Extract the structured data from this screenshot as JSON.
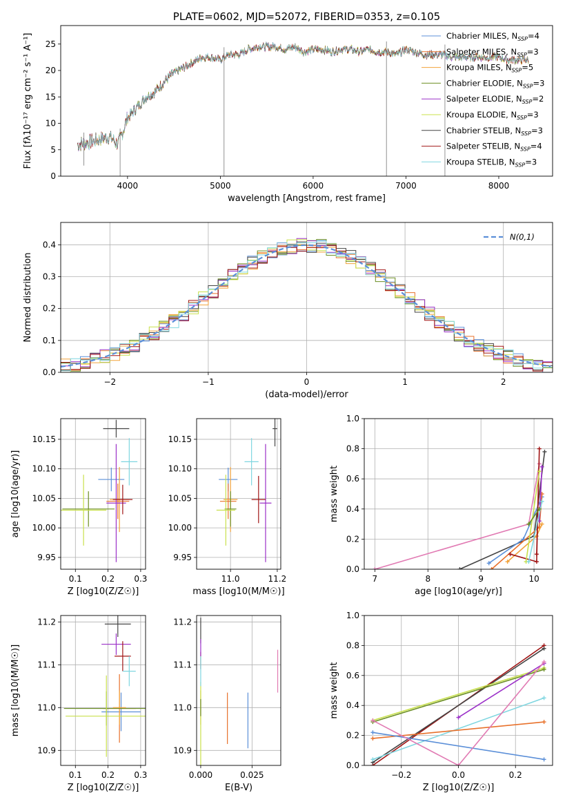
{
  "colors": {
    "chabrier_miles": "#5b8fd8",
    "salpeter_miles": "#e8702a",
    "kroupa_miles": "#f2a23a",
    "chabrier_elodie": "#6b8e23",
    "salpeter_elodie": "#9b30c8",
    "kroupa_elodie": "#c8e04a",
    "chabrier_stelib": "#444444",
    "salpeter_stelib": "#a01414",
    "kroupa_stelib": "#7fd6e0",
    "pink": "#e17ab3",
    "gaussian": "#5b8fd8",
    "grid": "#b0b0b0"
  },
  "chart_data": [
    {
      "id": "spectrum",
      "type": "line",
      "title": "PLATE=0602, MJD=52072, FIBERID=0353, z=0.105",
      "xlabel": "wavelength [Angstrom, rest frame]",
      "ylabel": "Flux [fλ10⁻¹⁷ erg cm⁻² s⁻¹ A⁻¹]",
      "xlim": [
        3280,
        8580
      ],
      "ylim": [
        0,
        28.5
      ],
      "xticks": [
        4000,
        5000,
        6000,
        7000,
        8000
      ],
      "yticks": [
        0,
        5,
        10,
        15,
        20,
        25
      ],
      "grid": false,
      "legend_position": "right",
      "legend": [
        {
          "label": "Chabrier MILES, N",
          "sub": "SSP",
          "tail": "=4",
          "color": "chabrier_miles"
        },
        {
          "label": "Salpeter MILES, N",
          "sub": "SSP",
          "tail": "=3",
          "color": "salpeter_miles"
        },
        {
          "label": "Kroupa MILES, N",
          "sub": "SSP",
          "tail": "=5",
          "color": "kroupa_miles"
        },
        {
          "label": "Chabrier ELODIE, N",
          "sub": "SSP",
          "tail": "=3",
          "color": "chabrier_elodie"
        },
        {
          "label": "Salpeter ELODIE, N",
          "sub": "SSP",
          "tail": "=2",
          "color": "salpeter_elodie"
        },
        {
          "label": "Kroupa ELODIE, N",
          "sub": "SSP",
          "tail": "=3",
          "color": "kroupa_elodie"
        },
        {
          "label": "Chabrier STELIB, N",
          "sub": "SSP",
          "tail": "=3",
          "color": "chabrier_stelib"
        },
        {
          "label": "Salpeter STELIB, N",
          "sub": "SSP",
          "tail": "=4",
          "color": "salpeter_stelib"
        },
        {
          "label": "Kroupa STELIB, N",
          "sub": "SSP",
          "tail": "=3",
          "color": "kroupa_stelib"
        }
      ],
      "continuum": [
        [
          3460,
          6
        ],
        [
          3600,
          6.5
        ],
        [
          3700,
          7
        ],
        [
          3800,
          7.5
        ],
        [
          3900,
          6
        ],
        [
          3960,
          9
        ],
        [
          4000,
          11
        ],
        [
          4100,
          13
        ],
        [
          4200,
          15
        ],
        [
          4300,
          16
        ],
        [
          4400,
          18
        ],
        [
          4500,
          19.5
        ],
        [
          4600,
          20.5
        ],
        [
          4700,
          21.5
        ],
        [
          4800,
          22.5
        ],
        [
          4900,
          22.5
        ],
        [
          5000,
          22
        ],
        [
          5100,
          23
        ],
        [
          5200,
          23
        ],
        [
          5300,
          24
        ],
        [
          5400,
          24.5
        ],
        [
          5500,
          24.5
        ],
        [
          5600,
          24.5
        ],
        [
          5700,
          24
        ],
        [
          5800,
          24.5
        ],
        [
          5900,
          23.5
        ],
        [
          6000,
          24
        ],
        [
          6100,
          24
        ],
        [
          6200,
          23.5
        ],
        [
          6300,
          24
        ],
        [
          6400,
          24
        ],
        [
          6500,
          23.5
        ],
        [
          6600,
          24
        ],
        [
          6700,
          23.5
        ],
        [
          6800,
          23.5
        ],
        [
          6900,
          23
        ],
        [
          7000,
          24
        ],
        [
          7100,
          23.5
        ],
        [
          7200,
          23
        ],
        [
          7300,
          23
        ],
        [
          7400,
          23
        ],
        [
          7500,
          22.5
        ],
        [
          7600,
          22.5
        ],
        [
          7700,
          22.5
        ],
        [
          7800,
          22.5
        ],
        [
          7900,
          22.5
        ],
        [
          8000,
          22.5
        ],
        [
          8100,
          22
        ],
        [
          8200,
          22
        ],
        [
          8320,
          22
        ]
      ],
      "spikes": [
        {
          "x": 5040,
          "y": 0
        },
        {
          "x": 6790,
          "y": 0
        },
        {
          "x": 7420,
          "y": 0
        },
        {
          "x": 3920,
          "y": 0
        },
        {
          "x": 3530,
          "y": 2
        }
      ]
    },
    {
      "id": "residuals",
      "type": "bar",
      "xlabel": "(data-model)/error",
      "ylabel": "Normed distribution",
      "xlim": [
        -2.5,
        2.5
      ],
      "ylim": [
        0,
        0.47
      ],
      "xticks": [
        -2,
        -1,
        0,
        1,
        2
      ],
      "yticks": [
        0.0,
        0.1,
        0.2,
        0.3,
        0.4
      ],
      "grid": true,
      "legend_position": "upper right",
      "gaussian_label": "N(0,1)"
    },
    {
      "id": "age_vs_Z",
      "type": "scatter",
      "xlabel": "Z [log10(Z/Z☉)]",
      "ylabel": "age  [log10(age/yr)]",
      "xlim": [
        0.055,
        0.315
      ],
      "ylim": [
        9.93,
        10.185
      ],
      "xticks": [
        0.1,
        0.2,
        0.3
      ],
      "yticks": [
        9.95,
        10.0,
        10.05,
        10.1,
        10.15
      ],
      "grid": true,
      "points": [
        {
          "x": 0.21,
          "y": 10.082,
          "xerr": 0.04,
          "yerr": 0.02,
          "color": "chabrier_miles"
        },
        {
          "x": 0.23,
          "y": 10.045,
          "xerr": 0.035,
          "yerr": 0.03,
          "color": "salpeter_miles"
        },
        {
          "x": 0.235,
          "y": 10.048,
          "xerr": 0.03,
          "yerr": 0.055,
          "color": "kroupa_miles"
        },
        {
          "x": 0.14,
          "y": 10.032,
          "xerr": 0.08,
          "yerr": 0.03,
          "color": "chabrier_elodie"
        },
        {
          "x": 0.225,
          "y": 10.042,
          "xerr": 0.03,
          "yerr": 0.1,
          "color": "salpeter_elodie"
        },
        {
          "x": 0.125,
          "y": 10.03,
          "xerr": 0.07,
          "yerr": 0.06,
          "color": "kroupa_elodie"
        },
        {
          "x": 0.225,
          "y": 10.168,
          "xerr": 0.04,
          "yerr": 0.015,
          "color": "chabrier_stelib"
        },
        {
          "x": 0.245,
          "y": 10.048,
          "xerr": 0.03,
          "yerr": 0.025,
          "color": "salpeter_stelib"
        },
        {
          "x": 0.265,
          "y": 10.112,
          "xerr": 0.025,
          "yerr": 0.04,
          "color": "kroupa_stelib"
        }
      ]
    },
    {
      "id": "age_vs_mass",
      "type": "scatter",
      "xlabel": "mass [log10(M/M☉)]",
      "ylabel": "",
      "xlim": [
        10.855,
        11.215
      ],
      "ylim": [
        9.93,
        10.185
      ],
      "xticks": [
        11.0,
        11.2
      ],
      "yticks": [
        9.95,
        10.0,
        10.05,
        10.1,
        10.15
      ],
      "grid": true,
      "points": [
        {
          "x": 10.99,
          "y": 10.082,
          "xerr": 0.04,
          "yerr": 0.02,
          "color": "chabrier_miles"
        },
        {
          "x": 10.99,
          "y": 10.045,
          "xerr": 0.035,
          "yerr": 0.03,
          "color": "salpeter_miles"
        },
        {
          "x": 11.0,
          "y": 10.048,
          "xerr": 0.03,
          "yerr": 0.055,
          "color": "kroupa_miles"
        },
        {
          "x": 11.0,
          "y": 10.032,
          "xerr": 0.025,
          "yerr": 0.03,
          "color": "chabrier_elodie"
        },
        {
          "x": 11.15,
          "y": 10.042,
          "xerr": 0.025,
          "yerr": 0.1,
          "color": "salpeter_elodie"
        },
        {
          "x": 10.98,
          "y": 10.03,
          "xerr": 0.04,
          "yerr": 0.06,
          "color": "kroupa_elodie"
        },
        {
          "x": 11.19,
          "y": 10.168,
          "xerr": 0.01,
          "yerr": 0.03,
          "color": "chabrier_stelib"
        },
        {
          "x": 11.12,
          "y": 10.048,
          "xerr": 0.03,
          "yerr": 0.04,
          "color": "salpeter_stelib"
        },
        {
          "x": 11.09,
          "y": 10.112,
          "xerr": 0.03,
          "yerr": 0.04,
          "color": "kroupa_stelib"
        }
      ]
    },
    {
      "id": "weight_vs_age",
      "type": "line",
      "xlabel": "age  [log10(age/yr)]",
      "ylabel": "mass weight",
      "xlim": [
        6.8,
        10.35
      ],
      "ylim": [
        0,
        1.0
      ],
      "xticks": [
        7,
        8,
        9,
        10
      ],
      "yticks": [
        0.0,
        0.2,
        0.4,
        0.6,
        0.8,
        1.0
      ],
      "grid": true,
      "series": [
        {
          "color": "pink",
          "x": [
            7.0,
            9.9,
            10.1
          ],
          "y": [
            0.0,
            0.3,
            0.7
          ]
        },
        {
          "color": "chabrier_stelib",
          "x": [
            8.6,
            10.0,
            10.2
          ],
          "y": [
            0.0,
            0.22,
            0.78
          ]
        },
        {
          "color": "chabrier_miles",
          "x": [
            9.15,
            9.8,
            10.15
          ],
          "y": [
            0.04,
            0.2,
            0.48
          ]
        },
        {
          "color": "salpeter_miles",
          "x": [
            9.2,
            10.1,
            10.15
          ],
          "y": [
            0.0,
            0.28,
            0.5
          ]
        },
        {
          "color": "kroupa_miles",
          "x": [
            9.5,
            10.05,
            10.15
          ],
          "y": [
            0.05,
            0.22,
            0.3
          ]
        },
        {
          "color": "salpeter_stelib",
          "x": [
            9.55,
            10.05,
            10.1,
            10.05
          ],
          "y": [
            0.1,
            0.05,
            0.8,
            0.1
          ]
        },
        {
          "color": "salpeter_elodie",
          "x": [
            10.1,
            10.15
          ],
          "y": [
            0.32,
            0.68
          ]
        },
        {
          "color": "kroupa_elodie",
          "x": [
            9.85,
            10.1
          ],
          "y": [
            0.05,
            0.65
          ]
        },
        {
          "color": "kroupa_stelib",
          "x": [
            9.9,
            10.15
          ],
          "y": [
            0.05,
            0.45
          ]
        },
        {
          "color": "chabrier_elodie",
          "x": [
            9.9,
            10.1
          ],
          "y": [
            0.3,
            0.4
          ]
        }
      ]
    },
    {
      "id": "mass_vs_Z",
      "type": "scatter",
      "xlabel": "Z [log10(Z/Z☉)]",
      "ylabel": "mass [log10(M/M☉)]",
      "xlim": [
        0.055,
        0.315
      ],
      "ylim": [
        10.865,
        11.215
      ],
      "xticks": [
        0.1,
        0.2,
        0.3
      ],
      "yticks": [
        10.9,
        11.0,
        11.1,
        11.2
      ],
      "grid": true,
      "points": [
        {
          "x": 0.24,
          "y": 10.99,
          "xerr": 0.06,
          "yerr": 0.045,
          "color": "chabrier_miles"
        },
        {
          "x": 0.235,
          "y": 10.998,
          "xerr": 0.05,
          "yerr": 0.08,
          "color": "salpeter_miles"
        },
        {
          "x": 0.235,
          "y": 11.0,
          "xerr": 0.02,
          "yerr": 0.04,
          "color": "kroupa_miles"
        },
        {
          "x": 0.195,
          "y": 10.998,
          "xerr": 0.13,
          "yerr": 0.04,
          "color": "chabrier_elodie"
        },
        {
          "x": 0.225,
          "y": 11.148,
          "xerr": 0.045,
          "yerr": 0.025,
          "color": "salpeter_elodie"
        },
        {
          "x": 0.195,
          "y": 10.98,
          "xerr": 0.125,
          "yerr": 0.095,
          "color": "kroupa_elodie"
        },
        {
          "x": 0.23,
          "y": 11.195,
          "xerr": 0.04,
          "yerr": 0.03,
          "color": "chabrier_stelib"
        },
        {
          "x": 0.245,
          "y": 11.12,
          "xerr": 0.025,
          "yerr": 0.035,
          "color": "salpeter_stelib"
        },
        {
          "x": 0.265,
          "y": 11.085,
          "xerr": 0.02,
          "yerr": 0.035,
          "color": "kroupa_stelib"
        }
      ]
    },
    {
      "id": "mass_vs_ebv",
      "type": "scatter",
      "xlabel": "E(B-V)",
      "ylabel": "",
      "xlim": [
        -0.002,
        0.039
      ],
      "ylim": [
        10.865,
        11.215
      ],
      "xticks": [
        0.0,
        0.025
      ],
      "ytick_labels_fmt": "1",
      "yticks": [
        10.9,
        11.0,
        11.1,
        11.2
      ],
      "grid": true,
      "points": [
        {
          "x": 0.023,
          "y": 10.97,
          "xerr": 0,
          "yerr": 0.065,
          "color": "chabrier_miles"
        },
        {
          "x": 0.013,
          "y": 10.975,
          "xerr": 0,
          "yerr": 0.06,
          "color": "salpeter_miles"
        },
        {
          "x": 0.0,
          "y": 11.0,
          "xerr": 0,
          "yerr": 0.04,
          "color": "kroupa_miles"
        },
        {
          "x": 0.0,
          "y": 10.96,
          "xerr": 0,
          "yerr": 0.1,
          "color": "kroupa_elodie"
        },
        {
          "x": 0.0,
          "y": 11.18,
          "xerr": 0,
          "yerr": 0.03,
          "color": "chabrier_stelib"
        },
        {
          "x": 0.0,
          "y": 11.11,
          "xerr": 0,
          "yerr": 0.02,
          "color": "salpeter_stelib"
        },
        {
          "x": 0.0,
          "y": 11.085,
          "xerr": 0,
          "yerr": 0.035,
          "color": "kroupa_stelib"
        },
        {
          "x": 0.0,
          "y": 11.0,
          "xerr": 0,
          "yerr": 0.02,
          "color": "chabrier_elodie"
        },
        {
          "x": 0.0,
          "y": 11.14,
          "xerr": 0,
          "yerr": 0.02,
          "color": "salpeter_elodie"
        },
        {
          "x": 0.0375,
          "y": 11.085,
          "xerr": 0,
          "yerr": 0.05,
          "color": "pink"
        }
      ]
    },
    {
      "id": "weight_vs_Z",
      "type": "line",
      "xlabel": "Z [log10(Z/Z☉)]",
      "ylabel": "mass weight",
      "xlim": [
        -0.33,
        0.33
      ],
      "ylim": [
        0,
        1.0
      ],
      "xticks": [
        -0.2,
        0.0,
        0.2
      ],
      "yticks": [
        0.0,
        0.2,
        0.4,
        0.6,
        0.8,
        1.0
      ],
      "grid": true,
      "series": [
        {
          "color": "salpeter_stelib",
          "x": [
            -0.3,
            0.3
          ],
          "y": [
            0.0,
            0.8
          ]
        },
        {
          "color": "chabrier_stelib",
          "x": [
            -0.3,
            0.3
          ],
          "y": [
            0.02,
            0.78
          ]
        },
        {
          "color": "kroupa_elodie",
          "x": [
            -0.3,
            0.3
          ],
          "y": [
            0.3,
            0.65
          ]
        },
        {
          "color": "chabrier_elodie",
          "x": [
            -0.3,
            0.3
          ],
          "y": [
            0.29,
            0.64
          ]
        },
        {
          "color": "salpeter_elodie",
          "x": [
            0.0,
            0.3
          ],
          "y": [
            0.32,
            0.68
          ]
        },
        {
          "color": "kroupa_stelib",
          "x": [
            -0.3,
            0.3
          ],
          "y": [
            0.04,
            0.45
          ]
        },
        {
          "color": "salpeter_miles",
          "x": [
            -0.3,
            0.3
          ],
          "y": [
            0.18,
            0.29
          ]
        },
        {
          "color": "chabrier_miles",
          "x": [
            -0.3,
            0.3
          ],
          "y": [
            0.22,
            0.04
          ]
        },
        {
          "color": "pink",
          "x": [
            -0.3,
            0.0,
            0.3
          ],
          "y": [
            0.3,
            0.0,
            0.69
          ]
        }
      ]
    }
  ]
}
